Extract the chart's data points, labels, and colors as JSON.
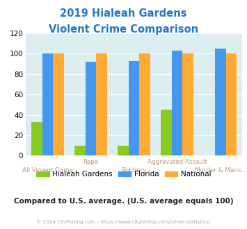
{
  "title_line1": "2019 Hialeah Gardens",
  "title_line2": "Violent Crime Comparison",
  "title_color": "#2277cc",
  "categories_top": [
    "",
    "Rape",
    "",
    "Aggravated Assault",
    ""
  ],
  "categories_bottom": [
    "All Violent Crime",
    "",
    "Robbery",
    "",
    "Murder & Mans..."
  ],
  "hialeah_values": [
    33,
    10,
    10,
    45,
    0
  ],
  "florida_values": [
    100,
    92,
    93,
    103,
    105
  ],
  "national_values": [
    100,
    100,
    100,
    100,
    100
  ],
  "hialeah_color": "#88cc22",
  "florida_color": "#4499ee",
  "national_color": "#ffaa33",
  "ylim": [
    0,
    120
  ],
  "yticks": [
    0,
    20,
    40,
    60,
    80,
    100,
    120
  ],
  "bg_color": "#ddeef0",
  "legend_labels": [
    "Hialeah Gardens",
    "Florida",
    "National"
  ],
  "footnote": "Compared to U.S. average. (U.S. average equals 100)",
  "footnote_color": "#222222",
  "copyright": "© 2024 CityRating.com - https://www.cityrating.com/crime-statistics/",
  "copyright_color": "#aaaaaa",
  "xlabel_color": "#bb9977",
  "bar_width": 0.25
}
